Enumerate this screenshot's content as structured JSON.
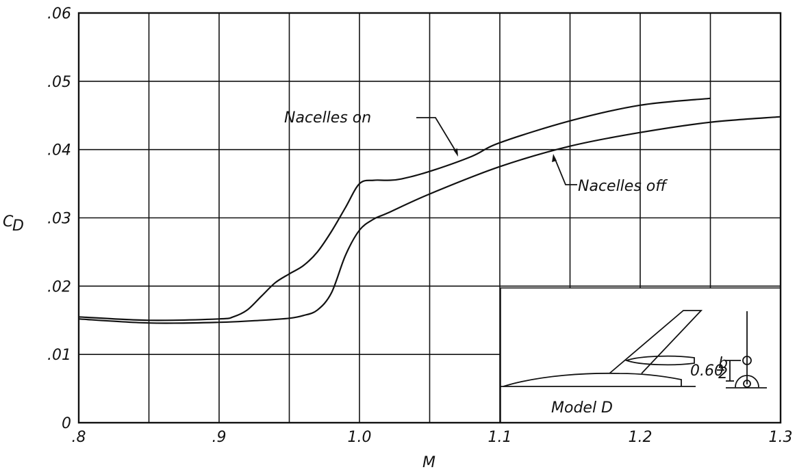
{
  "chart_data": {
    "type": "line",
    "title": "",
    "xlabel": "M",
    "ylabel": "C",
    "ylabel_sub": "D",
    "xlim": [
      0.8,
      1.3
    ],
    "ylim": [
      0,
      0.06
    ],
    "x_ticks": [
      {
        "v": 0.8,
        "label": ".8"
      },
      {
        "v": 0.9,
        "label": ".9"
      },
      {
        "v": 1.0,
        "label": "1.0"
      },
      {
        "v": 1.1,
        "label": "1.1"
      },
      {
        "v": 1.2,
        "label": "1.2"
      },
      {
        "v": 1.3,
        "label": "1.3"
      }
    ],
    "y_ticks": [
      {
        "v": 0,
        "label": "0"
      },
      {
        "v": 0.01,
        "label": ".01"
      },
      {
        "v": 0.02,
        "label": ".02"
      },
      {
        "v": 0.03,
        "label": ".03"
      },
      {
        "v": 0.04,
        "label": ".04"
      },
      {
        "v": 0.05,
        "label": ".05"
      },
      {
        "v": 0.06,
        "label": ".06"
      }
    ],
    "grid": true,
    "series": [
      {
        "name": "Nacelles on",
        "x": [
          0.8,
          0.85,
          0.9,
          0.91,
          0.92,
          0.93,
          0.94,
          0.95,
          0.96,
          0.97,
          0.98,
          0.99,
          1.0,
          1.01,
          1.02,
          1.03,
          1.05,
          1.08,
          1.1,
          1.15,
          1.2,
          1.25
        ],
        "y": [
          0.0155,
          0.015,
          0.0152,
          0.0155,
          0.0165,
          0.0185,
          0.0205,
          0.0218,
          0.023,
          0.025,
          0.028,
          0.0315,
          0.035,
          0.0355,
          0.0355,
          0.0357,
          0.0368,
          0.039,
          0.041,
          0.0442,
          0.0465,
          0.0475
        ]
      },
      {
        "name": "Nacelles off",
        "x": [
          0.8,
          0.85,
          0.9,
          0.93,
          0.95,
          0.96,
          0.97,
          0.98,
          0.99,
          1.0,
          1.01,
          1.02,
          1.05,
          1.1,
          1.15,
          1.2,
          1.25,
          1.3
        ],
        "y": [
          0.0152,
          0.0146,
          0.0147,
          0.015,
          0.0153,
          0.0157,
          0.0165,
          0.019,
          0.0245,
          0.0282,
          0.0298,
          0.0307,
          0.0335,
          0.0375,
          0.0405,
          0.0425,
          0.044,
          0.0448
        ]
      }
    ],
    "annotations": [
      {
        "text": "Nacelles on",
        "series": 0
      },
      {
        "text": "Nacelles off",
        "series": 1
      }
    ],
    "inset": {
      "label": "Model D",
      "dimension": "0.60",
      "fraction_num": "b",
      "fraction_den": "2"
    }
  }
}
